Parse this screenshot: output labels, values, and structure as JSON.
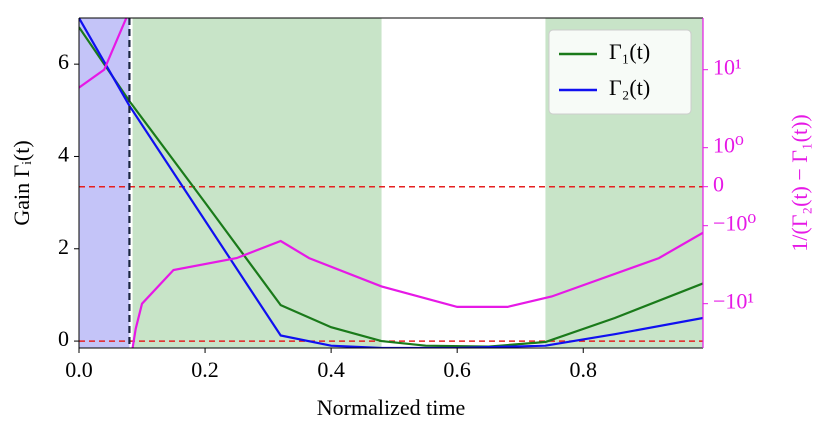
{
  "chart_data": {
    "type": "line",
    "x_label": "Normalized time",
    "y_label": "Gain Γᵢ(t)",
    "y2_label": "1/(Γ₂(t) − Γ₁(t))",
    "xlim": [
      0,
      0.99
    ],
    "xticks": [
      {
        "value": 0,
        "label": "0.0"
      },
      0.2,
      0.4,
      0.6,
      0.8
    ],
    "ylim": [
      -0.15,
      7
    ],
    "yticks": [
      0,
      2,
      4,
      6
    ],
    "y2lim": [
      -37,
      46
    ],
    "y2scale": "symlog",
    "y2_linthresh": 1,
    "y2_linscale": 0.45,
    "y2ticks": [
      {
        "value": 10,
        "label": "10¹"
      },
      {
        "value": 1,
        "label": "10⁰"
      },
      0,
      {
        "value": -1,
        "label": "−10⁰"
      },
      {
        "value": -10,
        "label": "−10¹"
      }
    ],
    "y2_color": "#e619e6",
    "spans": [
      {
        "x": [
          0,
          0.08
        ],
        "color": "#c4c4f8"
      },
      {
        "x": [
          0.085,
          0.48
        ],
        "color": "#c8e4c8"
      },
      {
        "x": [
          0.74,
          0.99
        ],
        "color": "#c8e4c8"
      }
    ],
    "vline": {
      "x": 0.08,
      "color": "#1a2540"
    },
    "hlines": [
      {
        "y": 0,
        "color": "#e62020"
      },
      {
        "y": 0,
        "axis": "y2",
        "color": "#e62020"
      }
    ],
    "legend": "upper right",
    "series": [
      {
        "name": "Γ₁(t)",
        "color": "#1a7a1a",
        "x": [
          0,
          0.08,
          0.2,
          0.32,
          0.4,
          0.48,
          0.55,
          0.65,
          0.74,
          0.85,
          0.99
        ],
        "values": [
          6.8,
          5.2,
          3.0,
          0.78,
          0.3,
          0.0,
          -0.1,
          -0.12,
          -0.02,
          0.5,
          1.25
        ]
      },
      {
        "name": "Γ₂(t)",
        "color": "#1010f0",
        "x": [
          0,
          0.08,
          0.32,
          0.4,
          0.48,
          0.6,
          0.74,
          0.85,
          0.99
        ],
        "values": [
          7.0,
          5.1,
          0.12,
          -0.1,
          -0.15,
          -0.15,
          -0.1,
          0.15,
          0.5
        ]
      },
      {
        "color": "#e619e6",
        "axis": "y2",
        "x": [
          0,
          0.04,
          0.075,
          0.08,
          0.085,
          0.09,
          0.1,
          0.15,
          0.25,
          0.32,
          0.365,
          0.48,
          0.6,
          0.68,
          0.75,
          0.92,
          0.99
        ],
        "values": [
          5.9,
          10,
          46,
          null,
          -37,
          -21,
          -10,
          -3.7,
          -2.6,
          -1.57,
          -2.6,
          -6.0,
          -11,
          -11,
          -8.1,
          -2.6,
          -1.23
        ]
      }
    ]
  }
}
